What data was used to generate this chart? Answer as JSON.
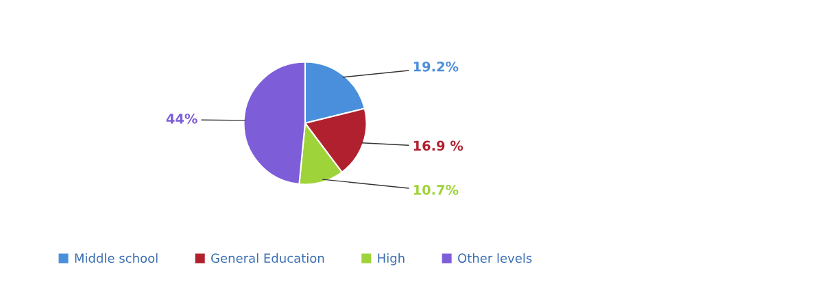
{
  "chart_data": {
    "type": "pie",
    "categories": [
      "Middle school",
      "General Education",
      "High",
      "Other levels"
    ],
    "values": [
      19.2,
      16.9,
      10.7,
      44
    ],
    "value_labels": [
      "19.2%",
      "16.9 %",
      "10.7%",
      "44%"
    ],
    "colors": [
      "#4a8fdc",
      "#b0202e",
      "#9fd33a",
      "#7d5ed8"
    ],
    "legend": "bottom"
  }
}
